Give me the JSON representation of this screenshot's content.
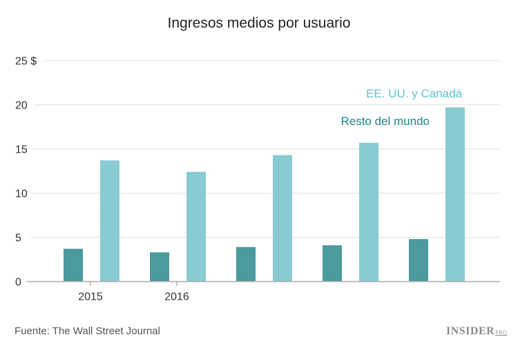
{
  "chart_data": {
    "type": "bar",
    "title": "Ingresos medios por usuario",
    "categories": [
      "2015",
      "2016",
      "",
      "",
      ""
    ],
    "series": [
      {
        "name": "Resto del mundo",
        "color": "#4a9a9e",
        "values": [
          3.7,
          3.3,
          3.9,
          4.1,
          4.8
        ]
      },
      {
        "name": "EE. UU. y Canadá",
        "color": "#88cbd3",
        "values": [
          13.7,
          12.4,
          14.3,
          15.7,
          19.7
        ]
      }
    ],
    "yticks": [
      "0",
      "5",
      "10",
      "15",
      "20",
      "25 $"
    ],
    "ylim": [
      0,
      25
    ],
    "grid": true,
    "xlabel": "",
    "ylabel": ""
  },
  "source": "Fuente: The Wall Street Journal",
  "logo": {
    "main": "INSIDER",
    "sub": "PRO"
  }
}
